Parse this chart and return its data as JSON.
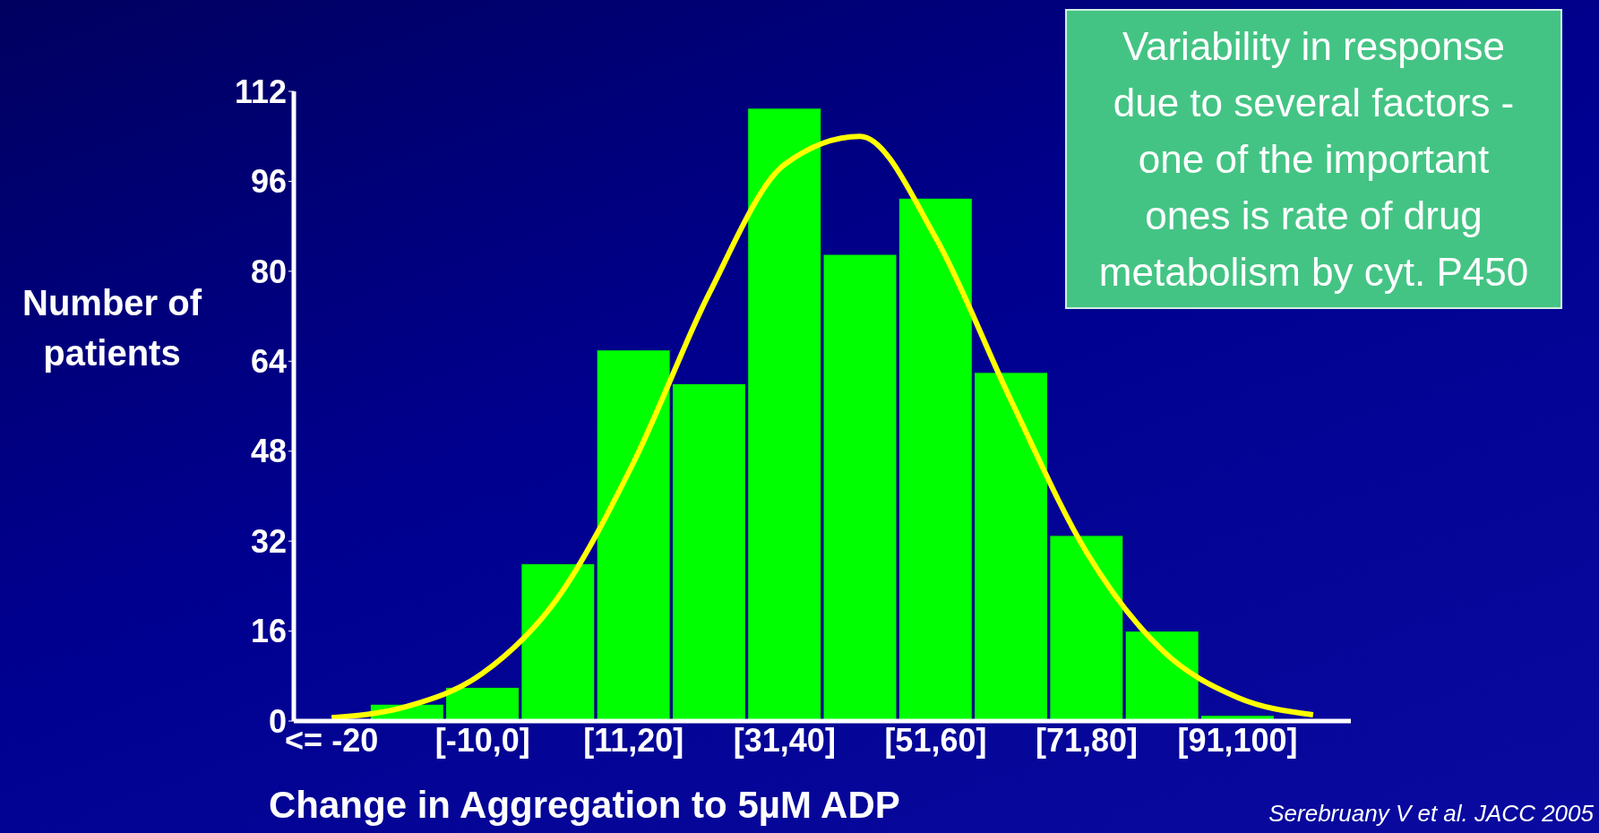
{
  "chart_data": {
    "type": "bar",
    "ylabel": "Number of patients",
    "xlabel": "Change in Aggregation to 5µM ADP",
    "categories": [
      "<= -20",
      null,
      "[-10,0]",
      null,
      "[11,20]",
      null,
      "[31,40]",
      null,
      "[51,60]",
      null,
      "[71,80]",
      null,
      "[91,100]",
      null
    ],
    "series": [
      {
        "color": "#00ff00",
        "values": [
          0,
          3,
          6,
          28,
          66,
          60,
          109,
          83,
          93,
          62,
          33,
          16,
          1,
          0
        ]
      },
      {
        "type": "line",
        "color": "#ffff00",
        "values": [
          0.6,
          2.6,
          8.5,
          22,
          46,
          76,
          99,
          104,
          86,
          57,
          30,
          12.6,
          4.2,
          1.1
        ]
      }
    ],
    "ylim": [
      0,
      112
    ],
    "yticks": [
      0,
      16,
      32,
      48,
      64,
      80,
      96,
      112
    ],
    "annotations": [
      "Variability in response due to several factors - one of the important ones is rate of drug metabolism by cyt. P450",
      "Serebruany V et al. JACC 2005"
    ]
  }
}
